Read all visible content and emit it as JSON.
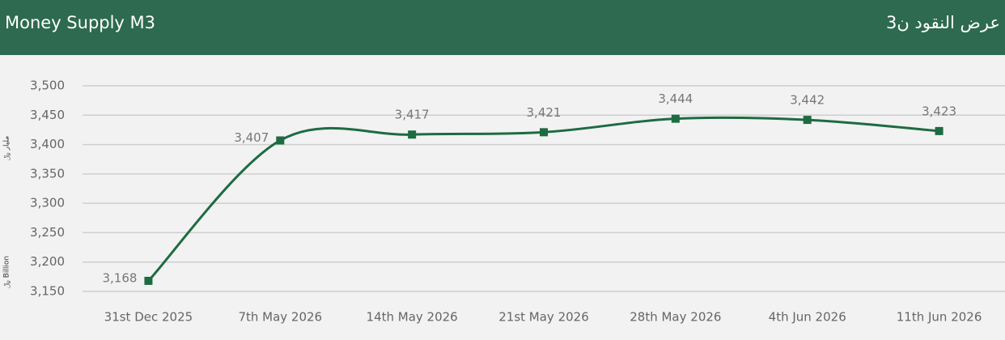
{
  "chart_data": {
    "type": "line",
    "title": "Money Supply M3",
    "title_ar": "عرض النقود ن3",
    "y_label": "﷼ Billion",
    "y_label_ar": "مليار ﷼",
    "categories": [
      "31st Dec 2025",
      "7th May 2026",
      "14th May 2026",
      "21st May 2026",
      "28th May 2026",
      "4th Jun 2026",
      "11th Jun 2026"
    ],
    "series": [
      {
        "name": "Money Supply M3",
        "color": "#1d6b42",
        "values": [
          3168,
          3407,
          3417,
          3421,
          3444,
          3442,
          3423
        ],
        "value_labels": [
          "3,168",
          "3,407",
          "3,417",
          "3,421",
          "3,444",
          "3,442",
          "3,423"
        ]
      }
    ],
    "ylim": [
      3150,
      3500
    ],
    "yticks": [
      {
        "value": 3150,
        "label": "3,150"
      },
      {
        "value": 3200,
        "label": "3,200"
      },
      {
        "value": 3250,
        "label": "3,250"
      },
      {
        "value": 3300,
        "label": "3,300"
      },
      {
        "value": 3350,
        "label": "3,350"
      },
      {
        "value": 3400,
        "label": "3,400"
      },
      {
        "value": 3450,
        "label": "3,450"
      },
      {
        "value": 3500,
        "label": "3,500"
      }
    ],
    "grid": true
  }
}
